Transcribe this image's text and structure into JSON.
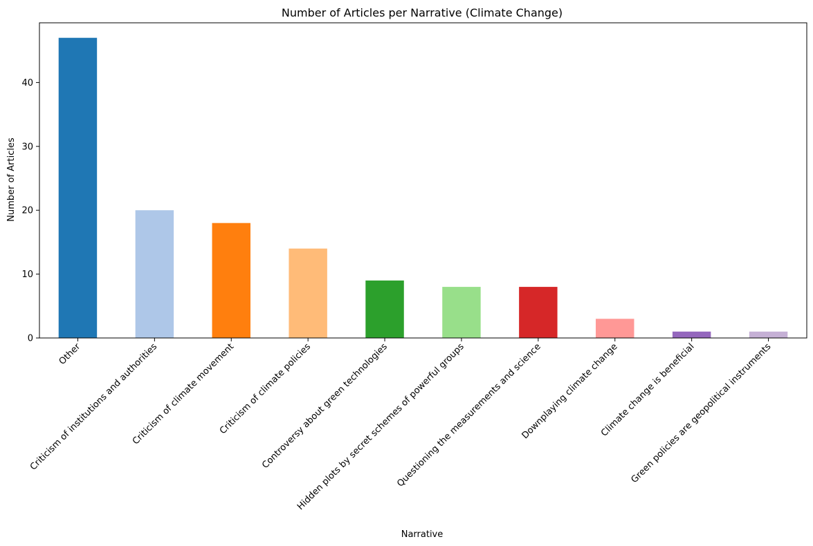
{
  "chart_data": {
    "type": "bar",
    "title": "Number of Articles per Narrative (Climate Change)",
    "xlabel": "Narrative",
    "ylabel": "Number of Articles",
    "categories": [
      "Other",
      "Criticism of institutions and authorities",
      "Criticism of climate movement",
      "Criticism of climate policies",
      "Controversy about green technologies",
      "Hidden plots by secret schemes of powerful groups",
      "Questioning the measurements and science",
      "Downplaying climate change",
      "Climate change is beneficial",
      "Green policies are geopolitical instruments"
    ],
    "values": [
      47,
      20,
      18,
      14,
      9,
      8,
      8,
      3,
      1,
      1
    ],
    "colors": [
      "#1f77b4",
      "#aec7e8",
      "#ff7f0e",
      "#ffbb78",
      "#2ca02c",
      "#98df8a",
      "#d62728",
      "#ff9896",
      "#9467bd",
      "#c5b0d5"
    ],
    "ylim": [
      0,
      49.35
    ],
    "yticks": [
      0,
      10,
      20,
      30,
      40
    ],
    "grid": false,
    "legend": "none"
  }
}
